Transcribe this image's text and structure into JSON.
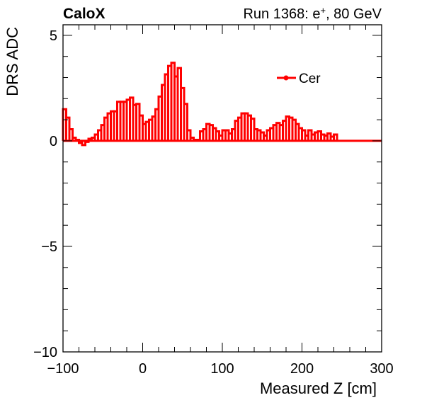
{
  "header": {
    "experiment": "CaloX",
    "run_text": "Run 1368: e",
    "run_sup": "+",
    "run_energy": ", 80 GeV"
  },
  "chart_data": {
    "type": "line",
    "xlabel": "Measured Z [cm]",
    "ylabel": "DRS ADC",
    "xlim": [
      -100,
      300
    ],
    "ylim": [
      -10,
      5.5
    ],
    "x_ticks": [
      -100,
      0,
      100,
      200,
      300
    ],
    "x_tick_labels": [
      "−100",
      "0",
      "100",
      "200",
      "300"
    ],
    "y_ticks": [
      -10,
      -5,
      0,
      5
    ],
    "y_tick_labels": [
      "−10",
      "−5",
      "0",
      "5"
    ],
    "grid": false,
    "legend_position": "top-right",
    "bin_width": 4,
    "series": [
      {
        "name": "Cer",
        "color": "#ff0000",
        "x_start": -100,
        "values": [
          1.5,
          1.1,
          0.55,
          0.15,
          0.05,
          -0.1,
          -0.2,
          -0.05,
          0.1,
          0.15,
          0.3,
          0.5,
          0.75,
          1.1,
          1.3,
          1.4,
          1.4,
          1.85,
          1.85,
          1.85,
          1.95,
          2.05,
          1.7,
          1.75,
          1.2,
          0.8,
          0.9,
          1.0,
          1.15,
          1.5,
          2.1,
          2.65,
          3.15,
          3.55,
          3.7,
          3.05,
          3.45,
          2.5,
          1.75,
          0.5,
          0.15,
          0.05,
          0.05,
          0.45,
          0.55,
          0.8,
          0.75,
          0.6,
          0.45,
          0.25,
          0.5,
          0.5,
          0.35,
          0.55,
          0.95,
          1.1,
          1.3,
          1.3,
          1.2,
          1.05,
          0.55,
          0.5,
          0.4,
          0.25,
          0.5,
          0.6,
          0.75,
          0.85,
          0.75,
          0.95,
          1.15,
          1.1,
          1.0,
          0.8,
          0.6,
          0.5,
          0.25,
          0.5,
          0.3,
          0.4,
          0.45,
          0.3,
          0.25,
          0.35,
          0.2,
          0.3
        ]
      }
    ]
  }
}
